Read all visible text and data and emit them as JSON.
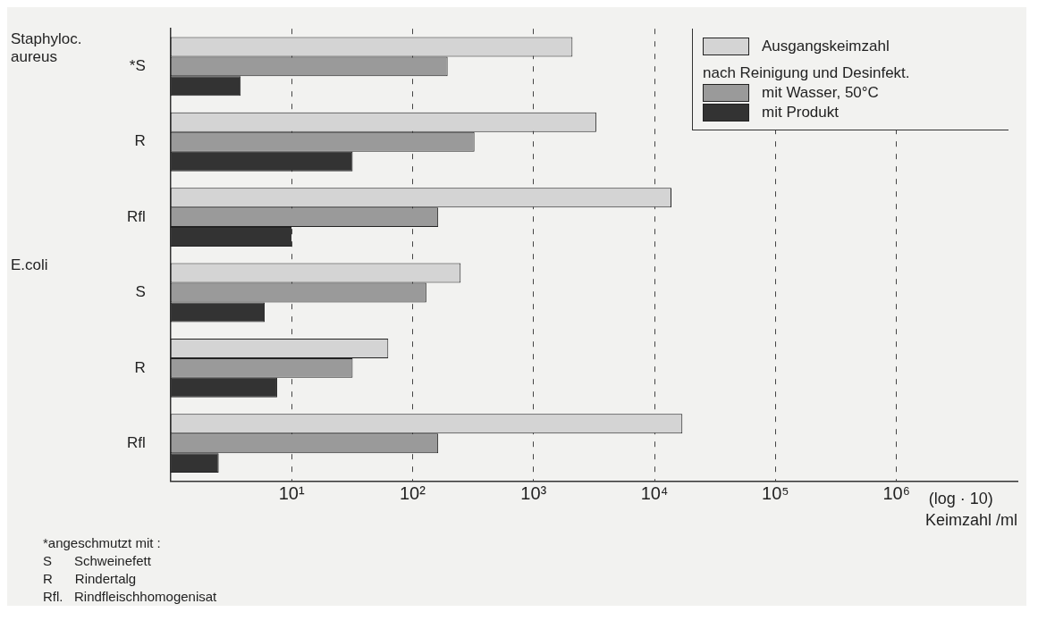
{
  "chart_data": {
    "type": "bar",
    "orientation": "horizontal",
    "log": "x",
    "categories": [
      "*S",
      "R",
      "Rfl",
      "S",
      "R",
      "Rfl"
    ],
    "series": [
      {
        "name": "Ausgangskeimzahl",
        "color": "#d4d4d4",
        "values": [
          2100,
          3300,
          13800,
          250,
          63,
          17000
        ]
      },
      {
        "name": "mit Wasser, 50°C",
        "color": "#9a9a9a",
        "values": [
          195,
          325,
          163,
          130,
          32,
          163
        ]
      },
      {
        "name": "mit Produkt",
        "color": "#333333",
        "values": [
          3.8,
          32,
          10,
          6,
          7.6,
          2.5
        ]
      }
    ],
    "legend": "top right",
    "legend_title": "nach Reinigung und Desinfekt.",
    "xlim": [
      1,
      10000000
    ],
    "xticks": [
      {
        "value": 10,
        "label": "10¹"
      },
      {
        "value": 100,
        "label": "10²"
      },
      {
        "value": 1000,
        "label": "10³"
      },
      {
        "value": 10000,
        "label": "10⁴"
      },
      {
        "value": 100000,
        "label": "10⁵"
      },
      {
        "value": 1000000,
        "label": "10⁶"
      }
    ],
    "grid": "x",
    "xlabel": "Keimzahl /ml",
    "annotations": [
      "Staphyloc. aureus",
      "E.coli",
      "(log · 10)",
      "*angeschmutzt mit :",
      "S      Schweinefett",
      "R      Rindertalg",
      "Rfl.   Rindfleischhomogenisat"
    ]
  }
}
